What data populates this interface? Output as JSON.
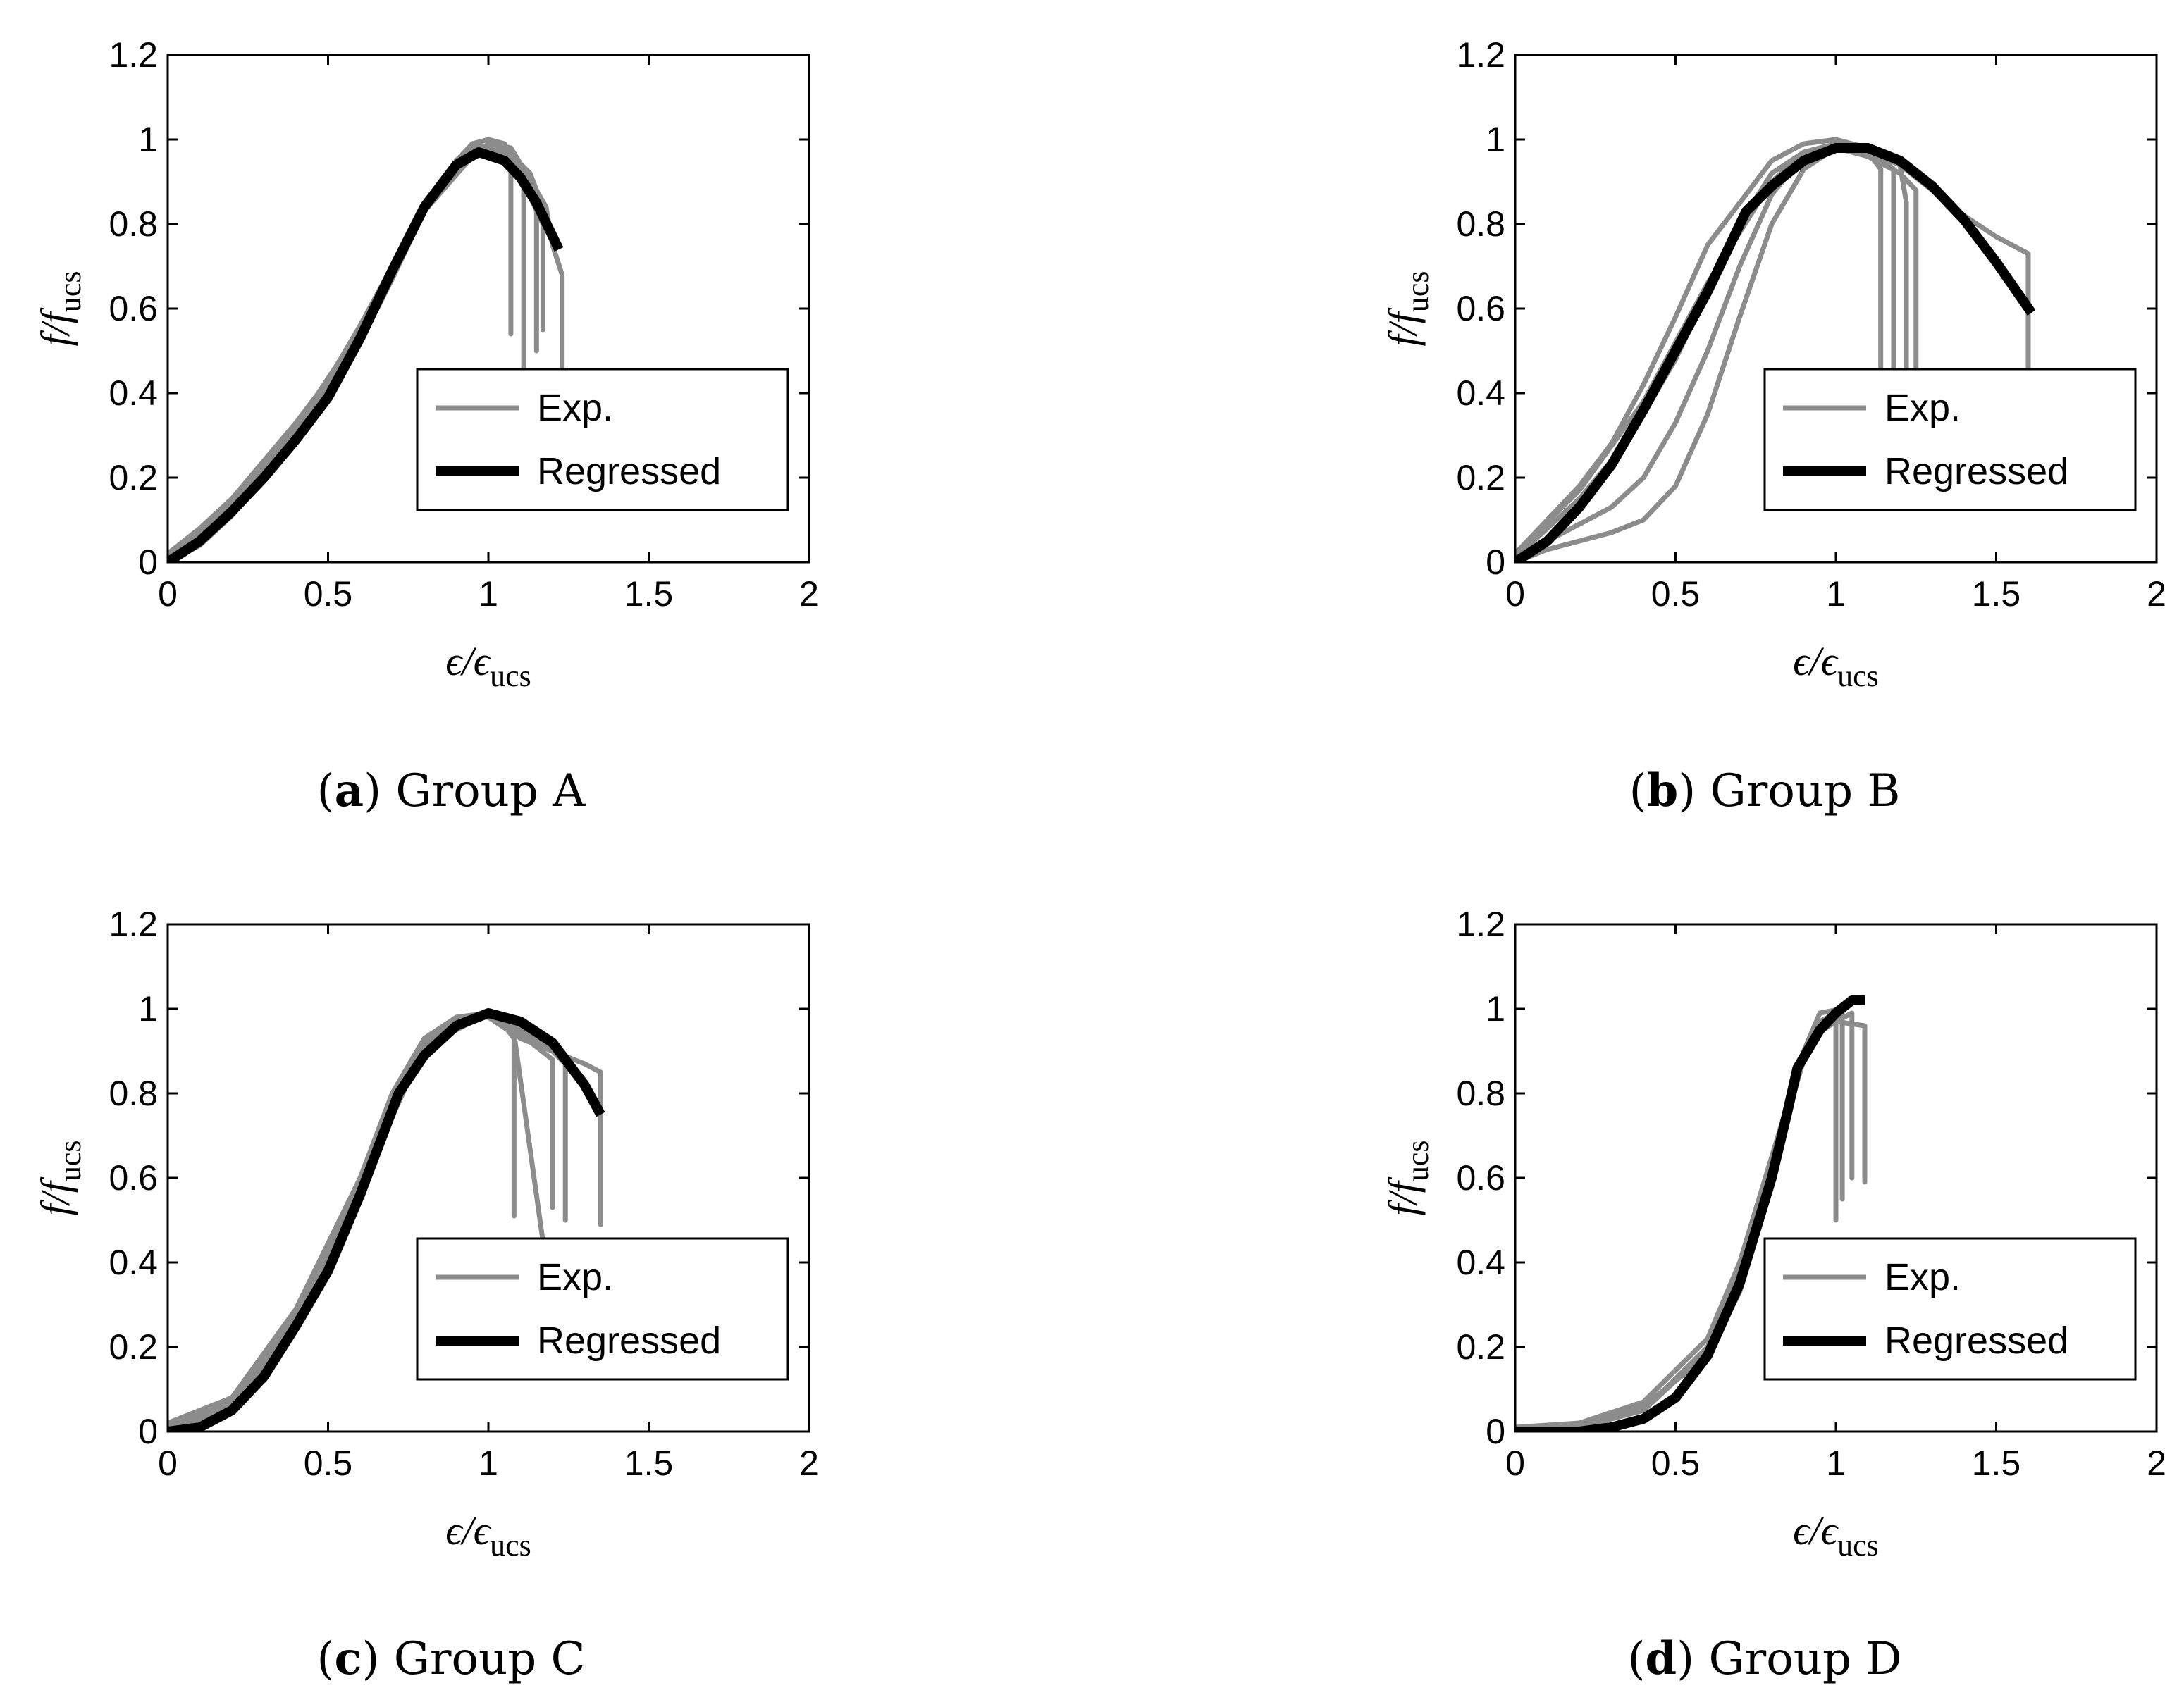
{
  "figure": {
    "legend": {
      "exp_label": "Exp.",
      "reg_label": "Regressed"
    },
    "axes": {
      "ylabel_main": "f/f",
      "ylabel_sub": "ucs",
      "xlabel_main": "ϵ/ϵ",
      "xlabel_sub": "ucs"
    },
    "colors": {
      "exp": "#8c8c8c",
      "regressed": "#000000",
      "frame": "#000000"
    }
  },
  "chart_data": [
    {
      "type": "line",
      "caption_letter": "a",
      "caption_text": "Group A",
      "xlim": [
        0,
        2
      ],
      "ylim": [
        0,
        1.2
      ],
      "xticks": [
        "0",
        "0.5",
        "1",
        "1.5",
        "2"
      ],
      "yticks": [
        "0",
        "0.2",
        "0.4",
        "0.6",
        "0.8",
        "1",
        "1.2"
      ],
      "regressed": [
        [
          0,
          0
        ],
        [
          0.1,
          0.05
        ],
        [
          0.2,
          0.12
        ],
        [
          0.3,
          0.2
        ],
        [
          0.4,
          0.29
        ],
        [
          0.5,
          0.39
        ],
        [
          0.6,
          0.53
        ],
        [
          0.7,
          0.69
        ],
        [
          0.8,
          0.84
        ],
        [
          0.9,
          0.94
        ],
        [
          0.97,
          0.97
        ],
        [
          1.05,
          0.95
        ],
        [
          1.1,
          0.91
        ],
        [
          1.15,
          0.85
        ],
        [
          1.22,
          0.74
        ]
      ],
      "experimental": [
        [
          [
            0,
            0.02
          ],
          [
            0.1,
            0.08
          ],
          [
            0.2,
            0.15
          ],
          [
            0.3,
            0.24
          ],
          [
            0.4,
            0.33
          ],
          [
            0.5,
            0.43
          ],
          [
            0.6,
            0.56
          ],
          [
            0.7,
            0.7
          ],
          [
            0.8,
            0.85
          ],
          [
            0.9,
            0.95
          ],
          [
            0.95,
            0.99
          ],
          [
            1.0,
            1.0
          ],
          [
            1.05,
            0.99
          ],
          [
            1.07,
            0.95
          ],
          [
            1.07,
            0.54
          ]
        ],
        [
          [
            0,
            0.0
          ],
          [
            0.1,
            0.04
          ],
          [
            0.2,
            0.11
          ],
          [
            0.3,
            0.2
          ],
          [
            0.4,
            0.29
          ],
          [
            0.5,
            0.4
          ],
          [
            0.6,
            0.52
          ],
          [
            0.7,
            0.67
          ],
          [
            0.8,
            0.83
          ],
          [
            0.9,
            0.93
          ],
          [
            1.0,
            0.99
          ],
          [
            1.07,
            0.98
          ],
          [
            1.11,
            0.93
          ],
          [
            1.11,
            0.45
          ]
        ],
        [
          [
            0,
            0.01
          ],
          [
            0.2,
            0.13
          ],
          [
            0.4,
            0.31
          ],
          [
            0.6,
            0.54
          ],
          [
            0.8,
            0.84
          ],
          [
            0.95,
            0.97
          ],
          [
            1.05,
            0.98
          ],
          [
            1.13,
            0.92
          ],
          [
            1.15,
            0.88
          ],
          [
            1.15,
            0.5
          ]
        ],
        [
          [
            0,
            0.0
          ],
          [
            0.2,
            0.12
          ],
          [
            0.4,
            0.3
          ],
          [
            0.6,
            0.53
          ],
          [
            0.8,
            0.83
          ],
          [
            0.95,
            0.96
          ],
          [
            1.05,
            0.97
          ],
          [
            1.12,
            0.92
          ],
          [
            1.18,
            0.84
          ],
          [
            1.2,
            0.75
          ],
          [
            1.23,
            0.68
          ],
          [
            1.23,
            0.41
          ]
        ],
        [
          [
            0,
            0.01
          ],
          [
            0.2,
            0.14
          ],
          [
            0.4,
            0.32
          ],
          [
            0.6,
            0.55
          ],
          [
            0.8,
            0.85
          ],
          [
            0.95,
            0.98
          ],
          [
            1.03,
            0.99
          ],
          [
            1.07,
            0.96
          ],
          [
            1.17,
            0.8
          ],
          [
            1.17,
            0.55
          ]
        ]
      ]
    },
    {
      "type": "line",
      "caption_letter": "b",
      "caption_text": "Group B",
      "xlim": [
        0,
        2
      ],
      "ylim": [
        0,
        1.2
      ],
      "xticks": [
        "0",
        "0.5",
        "1",
        "1.5",
        "2"
      ],
      "yticks": [
        "0",
        "0.2",
        "0.4",
        "0.6",
        "0.8",
        "1",
        "1.2"
      ],
      "regressed": [
        [
          0,
          0
        ],
        [
          0.1,
          0.05
        ],
        [
          0.2,
          0.13
        ],
        [
          0.3,
          0.23
        ],
        [
          0.4,
          0.36
        ],
        [
          0.5,
          0.5
        ],
        [
          0.6,
          0.64
        ],
        [
          0.72,
          0.83
        ],
        [
          0.8,
          0.89
        ],
        [
          0.9,
          0.95
        ],
        [
          1.0,
          0.98
        ],
        [
          1.1,
          0.98
        ],
        [
          1.2,
          0.95
        ],
        [
          1.3,
          0.89
        ],
        [
          1.4,
          0.81
        ],
        [
          1.5,
          0.71
        ],
        [
          1.61,
          0.59
        ]
      ],
      "experimental": [
        [
          [
            0,
            0.01
          ],
          [
            0.1,
            0.05
          ],
          [
            0.2,
            0.09
          ],
          [
            0.3,
            0.13
          ],
          [
            0.4,
            0.2
          ],
          [
            0.5,
            0.33
          ],
          [
            0.6,
            0.5
          ],
          [
            0.7,
            0.7
          ],
          [
            0.8,
            0.87
          ],
          [
            0.9,
            0.96
          ],
          [
            1.0,
            0.99
          ],
          [
            1.1,
            0.97
          ],
          [
            1.14,
            0.93
          ],
          [
            1.14,
            0.41
          ]
        ],
        [
          [
            0,
            0.02
          ],
          [
            0.2,
            0.18
          ],
          [
            0.3,
            0.28
          ],
          [
            0.4,
            0.42
          ],
          [
            0.5,
            0.58
          ],
          [
            0.6,
            0.75
          ],
          [
            0.7,
            0.85
          ],
          [
            0.8,
            0.95
          ],
          [
            0.9,
            0.99
          ],
          [
            1.0,
            1.0
          ],
          [
            1.1,
            0.98
          ],
          [
            1.18,
            0.93
          ],
          [
            1.18,
            0.46
          ]
        ],
        [
          [
            0,
            0.01
          ],
          [
            0.2,
            0.15
          ],
          [
            0.3,
            0.24
          ],
          [
            0.4,
            0.35
          ],
          [
            0.5,
            0.48
          ],
          [
            0.6,
            0.64
          ],
          [
            0.7,
            0.8
          ],
          [
            0.8,
            0.92
          ],
          [
            0.9,
            0.97
          ],
          [
            1.0,
            0.98
          ],
          [
            1.1,
            0.96
          ],
          [
            1.2,
            0.92
          ],
          [
            1.25,
            0.88
          ],
          [
            1.25,
            0.45
          ]
        ],
        [
          [
            0,
            0.0
          ],
          [
            0.1,
            0.03
          ],
          [
            0.2,
            0.05
          ],
          [
            0.3,
            0.07
          ],
          [
            0.4,
            0.1
          ],
          [
            0.5,
            0.18
          ],
          [
            0.6,
            0.35
          ],
          [
            0.7,
            0.58
          ],
          [
            0.8,
            0.8
          ],
          [
            0.9,
            0.93
          ],
          [
            1.0,
            0.98
          ],
          [
            1.1,
            0.98
          ],
          [
            1.2,
            0.94
          ],
          [
            1.22,
            0.85
          ],
          [
            1.22,
            0.46
          ]
        ],
        [
          [
            0,
            0.02
          ],
          [
            0.2,
            0.17
          ],
          [
            0.4,
            0.38
          ],
          [
            0.6,
            0.66
          ],
          [
            0.7,
            0.78
          ],
          [
            0.8,
            0.9
          ],
          [
            0.9,
            0.97
          ],
          [
            1.0,
            0.99
          ],
          [
            1.1,
            0.97
          ],
          [
            1.2,
            0.94
          ],
          [
            1.3,
            0.88
          ],
          [
            1.4,
            0.82
          ],
          [
            1.5,
            0.77
          ],
          [
            1.6,
            0.73
          ],
          [
            1.6,
            0.4
          ]
        ]
      ]
    },
    {
      "type": "line",
      "caption_letter": "c",
      "caption_text": "Group C",
      "xlim": [
        0,
        2
      ],
      "ylim": [
        0,
        1.2
      ],
      "xticks": [
        "0",
        "0.5",
        "1",
        "1.5",
        "2"
      ],
      "yticks": [
        "0",
        "0.2",
        "0.4",
        "0.6",
        "0.8",
        "1",
        "1.2"
      ],
      "regressed": [
        [
          0,
          0
        ],
        [
          0.1,
          0.01
        ],
        [
          0.2,
          0.05
        ],
        [
          0.3,
          0.13
        ],
        [
          0.4,
          0.25
        ],
        [
          0.5,
          0.38
        ],
        [
          0.6,
          0.56
        ],
        [
          0.72,
          0.8
        ],
        [
          0.8,
          0.89
        ],
        [
          0.9,
          0.96
        ],
        [
          1.0,
          0.99
        ],
        [
          1.1,
          0.97
        ],
        [
          1.2,
          0.92
        ],
        [
          1.3,
          0.82
        ],
        [
          1.35,
          0.75
        ]
      ],
      "experimental": [
        [
          [
            0,
            0.01
          ],
          [
            0.1,
            0.03
          ],
          [
            0.2,
            0.07
          ],
          [
            0.3,
            0.15
          ],
          [
            0.4,
            0.27
          ],
          [
            0.5,
            0.4
          ],
          [
            0.6,
            0.58
          ],
          [
            0.7,
            0.78
          ],
          [
            0.8,
            0.91
          ],
          [
            0.9,
            0.98
          ],
          [
            1.0,
            0.99
          ],
          [
            1.05,
            0.96
          ],
          [
            1.08,
            0.93
          ],
          [
            1.08,
            0.51
          ]
        ],
        [
          [
            0,
            0.02
          ],
          [
            0.2,
            0.08
          ],
          [
            0.4,
            0.29
          ],
          [
            0.6,
            0.6
          ],
          [
            0.7,
            0.8
          ],
          [
            0.8,
            0.93
          ],
          [
            0.9,
            0.98
          ],
          [
            1.0,
            0.98
          ],
          [
            1.08,
            0.94
          ],
          [
            1.17,
            0.45
          ]
        ],
        [
          [
            0,
            0.01
          ],
          [
            0.2,
            0.06
          ],
          [
            0.4,
            0.26
          ],
          [
            0.6,
            0.55
          ],
          [
            0.7,
            0.76
          ],
          [
            0.8,
            0.9
          ],
          [
            0.9,
            0.97
          ],
          [
            1.0,
            0.99
          ],
          [
            1.1,
            0.94
          ],
          [
            1.2,
            0.88
          ],
          [
            1.2,
            0.53
          ]
        ],
        [
          [
            0,
            0.0
          ],
          [
            0.2,
            0.06
          ],
          [
            0.4,
            0.27
          ],
          [
            0.6,
            0.57
          ],
          [
            0.8,
            0.92
          ],
          [
            0.9,
            0.98
          ],
          [
            1.0,
            0.99
          ],
          [
            1.1,
            0.95
          ],
          [
            1.2,
            0.9
          ],
          [
            1.24,
            0.87
          ],
          [
            1.24,
            0.5
          ]
        ],
        [
          [
            0,
            0.01
          ],
          [
            0.2,
            0.07
          ],
          [
            0.4,
            0.28
          ],
          [
            0.6,
            0.58
          ],
          [
            0.8,
            0.91
          ],
          [
            1.0,
            0.99
          ],
          [
            1.1,
            0.93
          ],
          [
            1.2,
            0.9
          ],
          [
            1.3,
            0.87
          ],
          [
            1.35,
            0.85
          ],
          [
            1.35,
            0.49
          ]
        ]
      ]
    },
    {
      "type": "line",
      "caption_letter": "d",
      "caption_text": "Group D",
      "xlim": [
        0,
        2
      ],
      "ylim": [
        0,
        1.2
      ],
      "xticks": [
        "0",
        "0.5",
        "1",
        "1.5",
        "2"
      ],
      "yticks": [
        "0",
        "0.2",
        "0.4",
        "0.6",
        "0.8",
        "1",
        "1.2"
      ],
      "regressed": [
        [
          0,
          0
        ],
        [
          0.2,
          0.0
        ],
        [
          0.3,
          0.01
        ],
        [
          0.4,
          0.03
        ],
        [
          0.5,
          0.08
        ],
        [
          0.6,
          0.18
        ],
        [
          0.7,
          0.35
        ],
        [
          0.8,
          0.6
        ],
        [
          0.85,
          0.76
        ],
        [
          0.88,
          0.86
        ],
        [
          0.95,
          0.95
        ],
        [
          1.0,
          0.99
        ],
        [
          1.05,
          1.02
        ],
        [
          1.09,
          1.02
        ]
      ],
      "experimental": [
        [
          [
            0,
            0.0
          ],
          [
            0.2,
            0.01
          ],
          [
            0.4,
            0.05
          ],
          [
            0.6,
            0.2
          ],
          [
            0.7,
            0.38
          ],
          [
            0.8,
            0.62
          ],
          [
            0.9,
            0.88
          ],
          [
            0.95,
            0.97
          ],
          [
            1.0,
            0.99
          ],
          [
            1.0,
            0.5
          ]
        ],
        [
          [
            0,
            0.0
          ],
          [
            0.2,
            0.02
          ],
          [
            0.4,
            0.07
          ],
          [
            0.6,
            0.22
          ],
          [
            0.7,
            0.4
          ],
          [
            0.8,
            0.65
          ],
          [
            0.9,
            0.9
          ],
          [
            0.95,
            0.99
          ],
          [
            1.02,
            1.0
          ],
          [
            1.02,
            0.55
          ]
        ],
        [
          [
            0,
            0.01
          ],
          [
            0.2,
            0.02
          ],
          [
            0.4,
            0.06
          ],
          [
            0.6,
            0.18
          ],
          [
            0.7,
            0.33
          ],
          [
            0.8,
            0.58
          ],
          [
            0.88,
            0.85
          ],
          [
            0.95,
            0.95
          ],
          [
            1.05,
            0.99
          ],
          [
            1.05,
            0.6
          ]
        ],
        [
          [
            0,
            0.0
          ],
          [
            0.2,
            0.01
          ],
          [
            0.4,
            0.05
          ],
          [
            0.6,
            0.19
          ],
          [
            0.75,
            0.5
          ],
          [
            0.85,
            0.77
          ],
          [
            0.92,
            0.93
          ],
          [
            1.0,
            0.97
          ],
          [
            1.09,
            0.96
          ],
          [
            1.09,
            0.59
          ]
        ]
      ]
    }
  ]
}
